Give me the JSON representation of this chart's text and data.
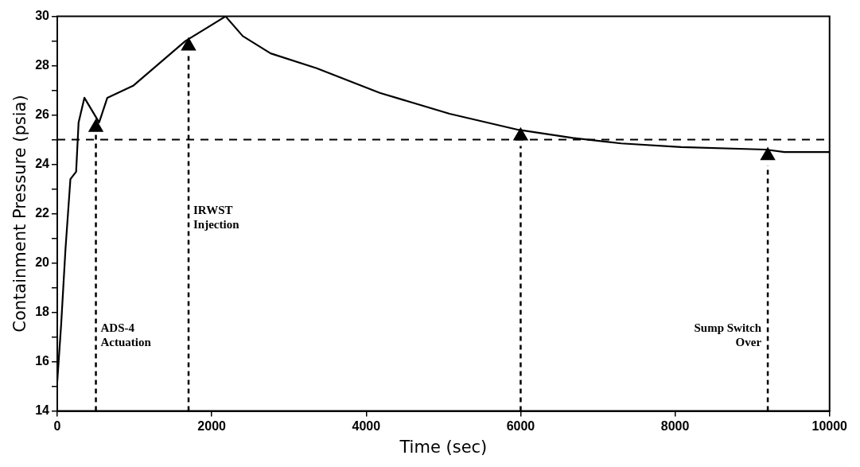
{
  "chart_data": {
    "type": "line",
    "xlabel": "Time (sec)",
    "ylabel": "Containment Pressure (psia)",
    "x": [
      0,
      50,
      106,
      170,
      244,
      276,
      351,
      542,
      648,
      988,
      1658,
      2179,
      2402,
      2763,
      3358,
      4176,
      5080,
      5972,
      6674,
      7301,
      8077,
      9171,
      9415,
      10000
    ],
    "series": [
      {
        "color": "#000000",
        "values": [
          15.2,
          17.5,
          20.55,
          23.4,
          23.7,
          25.7,
          26.7,
          25.7,
          26.7,
          27.2,
          29.0,
          30,
          29.2,
          28.5,
          27.9,
          26.9,
          26.05,
          25.4,
          25.07,
          24.85,
          24.7,
          24.6,
          24.5,
          24.5
        ]
      },
      {
        "type": "scatter",
        "marker": "triangle",
        "color": "#000000",
        "x": [
          500,
          1700,
          6000,
          9200
        ],
        "values": [
          25.5,
          28.8,
          25.15,
          24.35
        ]
      }
    ],
    "xlim": [
      0,
      10000
    ],
    "xticks": [
      0,
      2000,
      4000,
      6000,
      8000,
      10000
    ],
    "ylim": [
      14,
      30
    ],
    "yticks": [
      14,
      {
        "value": 15,
        "label": null
      },
      16,
      {
        "value": 17,
        "label": null
      },
      18,
      {
        "value": 19,
        "label": null
      },
      20,
      {
        "value": 21,
        "label": null
      },
      22,
      {
        "value": 23,
        "label": null
      },
      24,
      {
        "value": 25,
        "label": null
      },
      26,
      {
        "value": 27,
        "label": null
      },
      28,
      {
        "value": 29,
        "label": null
      },
      30
    ],
    "ref_lines": [
      {
        "axis": "y",
        "value": 25,
        "line_style": "dashed",
        "color": "#000000"
      },
      {
        "axis": "x",
        "value": 500,
        "label": "ADS-4\nActuation",
        "line_style": "dotted",
        "color": "#000000"
      },
      {
        "axis": "x",
        "value": 1700,
        "label": "IRWST\nInjection",
        "line_style": "dotted",
        "color": "#000000"
      },
      {
        "axis": "x",
        "value": 6000,
        "line_style": "dotted",
        "color": "#000000"
      },
      {
        "axis": "x",
        "value": 9200,
        "label": "Sump Switch\nOver",
        "line_style": "dotted",
        "color": "#000000"
      }
    ],
    "grid": false,
    "legend": false,
    "marker": "none",
    "line_style": "solid"
  }
}
